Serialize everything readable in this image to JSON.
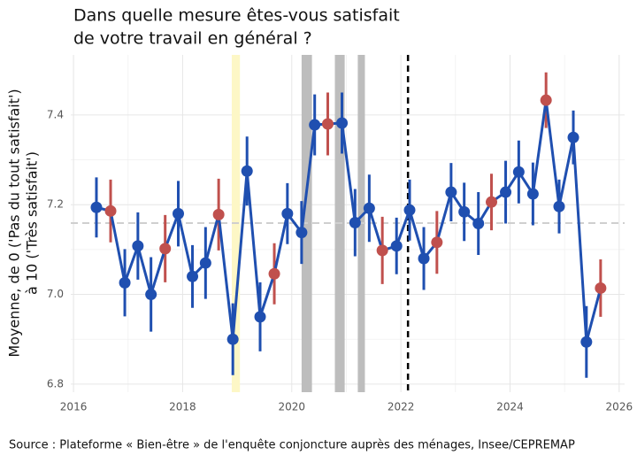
{
  "chart_data": {
    "type": "line",
    "title": [
      "Dans quelle mesure êtes-vous satisfait",
      "de votre travail en général ?"
    ],
    "y_label": [
      "Moyenne, de 0 ('Pas du tout satisfait')",
      "à 10 ('Très satisfait')"
    ],
    "caption": "Source : Plateforme « Bien-être » de l'enquête conjoncture auprès des ménages, Insee/CEPREMAP",
    "x": [
      2016.42,
      2016.68,
      2016.94,
      2017.18,
      2017.42,
      2017.68,
      2017.92,
      2018.18,
      2018.42,
      2018.66,
      2018.92,
      2019.18,
      2019.42,
      2019.68,
      2019.92,
      2020.18,
      2020.42,
      2020.66,
      2020.92,
      2021.16,
      2021.42,
      2021.66,
      2021.92,
      2022.16,
      2022.42,
      2022.66,
      2022.92,
      2023.16,
      2023.42,
      2023.66,
      2023.92,
      2024.16,
      2024.42,
      2024.66,
      2024.9,
      2025.16,
      2025.4,
      2025.66
    ],
    "values": [
      7.194,
      7.186,
      7.026,
      7.108,
      7.0,
      7.102,
      7.18,
      7.04,
      7.07,
      7.178,
      6.9,
      7.275,
      6.95,
      7.046,
      7.18,
      7.138,
      7.378,
      7.38,
      7.382,
      7.16,
      7.192,
      7.098,
      7.108,
      7.188,
      7.08,
      7.116,
      7.228,
      7.184,
      7.158,
      7.206,
      7.228,
      7.273,
      7.224,
      7.433,
      7.196,
      7.35,
      6.894,
      7.014
    ],
    "errors": [
      0.067,
      0.07,
      0.075,
      0.075,
      0.083,
      0.075,
      0.073,
      0.07,
      0.08,
      0.08,
      0.08,
      0.077,
      0.077,
      0.068,
      0.068,
      0.07,
      0.068,
      0.07,
      0.068,
      0.075,
      0.075,
      0.075,
      0.063,
      0.068,
      0.07,
      0.07,
      0.065,
      0.065,
      0.07,
      0.063,
      0.07,
      0.07,
      0.07,
      0.062,
      0.06,
      0.06,
      0.08,
      0.064
    ],
    "color": "#1f4fb0",
    "point_colors": [
      "#1f4fb0",
      "#c0504d",
      "#1f4fb0",
      "#1f4fb0",
      "#1f4fb0",
      "#c0504d",
      "#1f4fb0",
      "#1f4fb0",
      "#1f4fb0",
      "#c0504d",
      "#1f4fb0",
      "#1f4fb0",
      "#1f4fb0",
      "#c0504d",
      "#1f4fb0",
      "#1f4fb0",
      "#1f4fb0",
      "#c0504d",
      "#1f4fb0",
      "#1f4fb0",
      "#1f4fb0",
      "#c0504d",
      "#1f4fb0",
      "#1f4fb0",
      "#1f4fb0",
      "#c0504d",
      "#1f4fb0",
      "#1f4fb0",
      "#1f4fb0",
      "#c0504d",
      "#1f4fb0",
      "#1f4fb0",
      "#1f4fb0",
      "#c0504d",
      "#1f4fb0",
      "#1f4fb0",
      "#1f4fb0",
      "#c0504d"
    ],
    "bands": [
      {
        "x0": 2018.9,
        "x1": 2019.05,
        "color": "#fdf7c6"
      },
      {
        "x0": 2020.18,
        "x1": 2020.37,
        "color": "#bdbdbd"
      },
      {
        "x0": 2020.79,
        "x1": 2020.97,
        "color": "#bdbdbd"
      },
      {
        "x0": 2021.21,
        "x1": 2021.34,
        "color": "#bdbdbd"
      }
    ],
    "vline": 2022.13,
    "hline": 7.159,
    "xlim": [
      2015.95,
      2026.1
    ],
    "ylim": [
      6.782,
      7.534
    ],
    "xticks": [
      2016,
      2018,
      2020,
      2022,
      2024,
      2026
    ],
    "yticks": [
      {
        "value": 6.8,
        "label": "6.8"
      },
      {
        "value": 7.0,
        "label": "7.0"
      },
      {
        "value": 7.2,
        "label": "7.2"
      },
      {
        "value": 7.4,
        "label": "7.4"
      }
    ],
    "grid": true
  }
}
